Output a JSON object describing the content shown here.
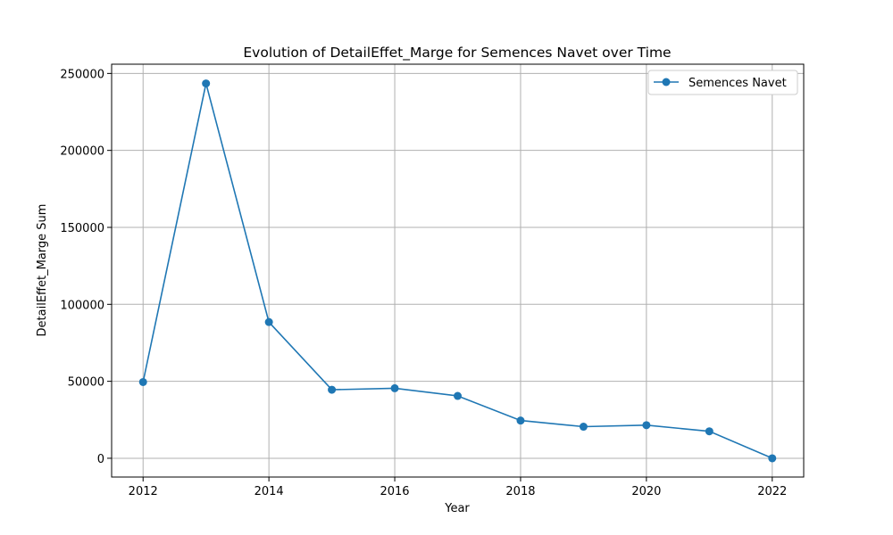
{
  "chart_data": {
    "type": "line",
    "title": "Evolution of DetailEffet_Marge for Semences Navet over Time",
    "xlabel": "Year",
    "ylabel": "DetailEffet_Marge Sum",
    "xlim": [
      2011.5,
      2022.5
    ],
    "ylim": [
      -12200,
      256000
    ],
    "xticks": [
      2012,
      2014,
      2016,
      2018,
      2020,
      2022
    ],
    "yticks": [
      0,
      50000,
      100000,
      150000,
      200000,
      250000
    ],
    "grid": true,
    "legend_position": "top-right",
    "color": "#1f77b4",
    "series": [
      {
        "name": "Semences Navet",
        "x": [
          2012,
          2013,
          2014,
          2015,
          2016,
          2017,
          2018,
          2019,
          2020,
          2021,
          2022
        ],
        "y": [
          49500,
          243500,
          88500,
          44500,
          45500,
          40500,
          24500,
          20500,
          21500,
          17500,
          0
        ]
      }
    ]
  }
}
